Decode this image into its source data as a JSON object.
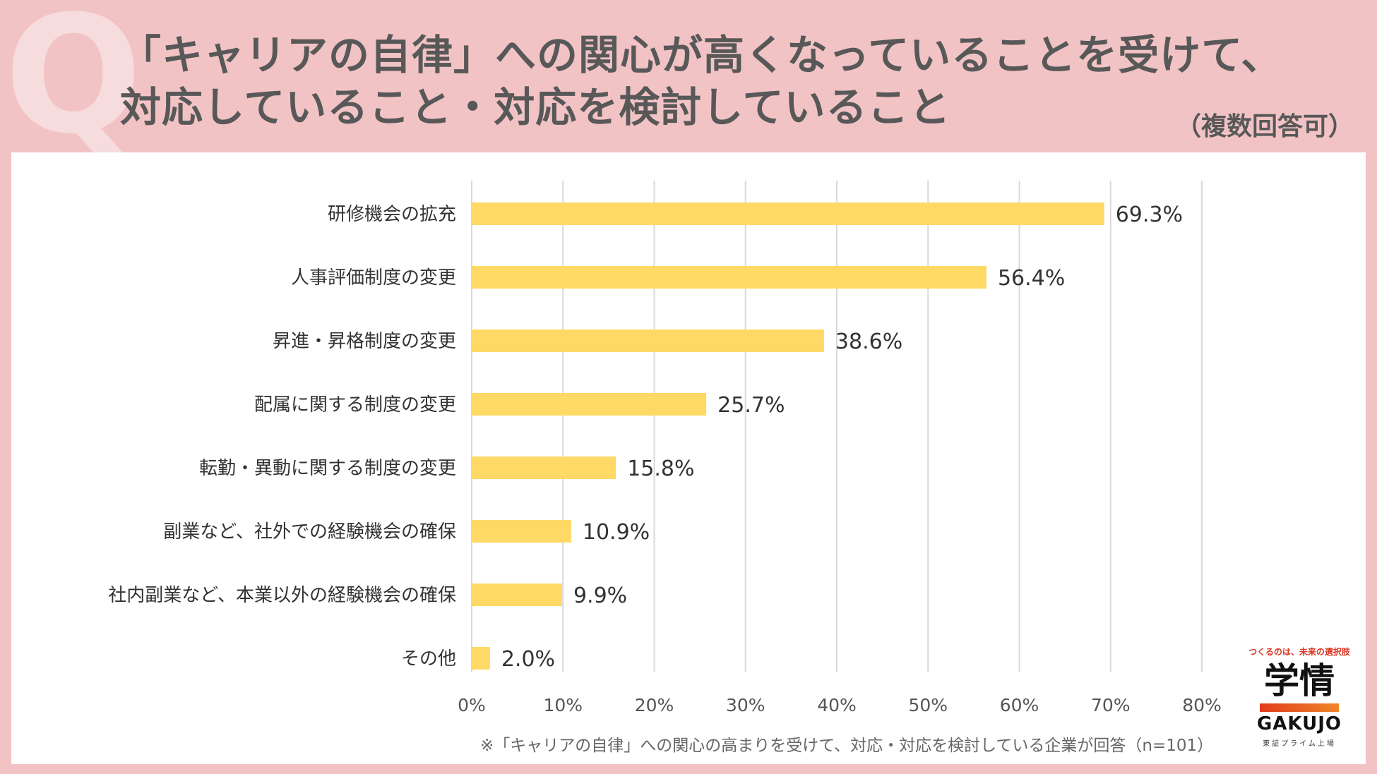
{
  "header": {
    "q_mark": "Q",
    "title_line1": "「キャリアの自律」への関心が高くなっていることを受けて、",
    "title_line2": "対応していること・対応を検討していること",
    "multi_answer_note": "（複数回答可）"
  },
  "footnote": "※「キャリアの自律」への関心の高まりを受けて、対応・対応を検討している企業が回答（n=101）",
  "logo": {
    "tagline": "つくるのは、未来の選択肢",
    "name_ja": "学情",
    "name_en": "GAKUJO",
    "sub": "東証プライム上場"
  },
  "colors": {
    "background": "#f2c3c5",
    "bar": "#ffd966",
    "grid": "#d9d9d9",
    "text": "#585858"
  },
  "chart_data": {
    "type": "bar",
    "orientation": "horizontal",
    "categories": [
      "研修機会の拡充",
      "人事評価制度の変更",
      "昇進・昇格制度の変更",
      "配属に関する制度の変更",
      "転勤・異動に関する制度の変更",
      "副業など、社外での経験機会の確保",
      "社内副業など、本業以外の経験機会の確保",
      "その他"
    ],
    "values": [
      69.3,
      56.4,
      38.6,
      25.7,
      15.8,
      10.9,
      9.9,
      2.0
    ],
    "value_labels": [
      "69.3%",
      "56.4%",
      "38.6%",
      "25.7%",
      "15.8%",
      "10.9%",
      "9.9%",
      "2.0%"
    ],
    "xlim": [
      0,
      80
    ],
    "x_ticks": [
      0,
      10,
      20,
      30,
      40,
      50,
      60,
      70,
      80
    ],
    "x_tick_labels": [
      "0%",
      "10%",
      "20%",
      "30%",
      "40%",
      "50%",
      "60%",
      "70%",
      "80%"
    ],
    "grid": true,
    "legend": "none"
  }
}
